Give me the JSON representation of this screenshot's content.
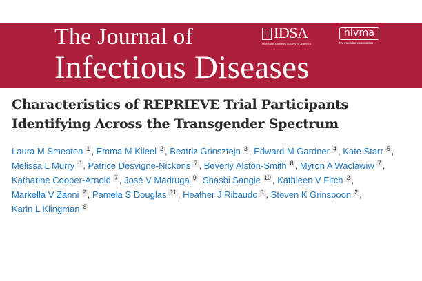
{
  "journal": {
    "title_line1": "The Journal of",
    "title_line2": "Infectious Diseases",
    "brand_color": "#ad1f3b",
    "logos": {
      "idsa": {
        "text": "IDSA",
        "subtitle": "Infectious Diseases Society of America"
      },
      "hivma": {
        "text": "hivma",
        "subtitle": "hiv medicine association"
      }
    }
  },
  "article": {
    "title_line1": "Characteristics of REPRIEVE Trial Participants",
    "title_line2": "Identifying Across the Transgender Spectrum",
    "link_color": "#1f78c1"
  },
  "authors": [
    {
      "name": "Laura M Smeaton",
      "aff": "1"
    },
    {
      "name": "Emma M Kileel",
      "aff": "2"
    },
    {
      "name": "Beatriz Grinsztejn",
      "aff": "3"
    },
    {
      "name": "Edward M Gardner",
      "aff": "4"
    },
    {
      "name": "Kate Starr",
      "aff": "5"
    },
    {
      "name": "Melissa L Murry",
      "aff": "6"
    },
    {
      "name": "Patrice Desvigne-Nickens",
      "aff": "7"
    },
    {
      "name": "Beverly Alston-Smith",
      "aff": "8"
    },
    {
      "name": "Myron A Waclawiw",
      "aff": "7"
    },
    {
      "name": "Katharine Cooper-Arnold",
      "aff": "7"
    },
    {
      "name": "José V Madruga",
      "aff": "9"
    },
    {
      "name": "Shashi Sangle",
      "aff": "10"
    },
    {
      "name": "Kathleen V Fitch",
      "aff": "2"
    },
    {
      "name": "Markella V Zanni",
      "aff": "2"
    },
    {
      "name": "Pamela S Douglas",
      "aff": "11"
    },
    {
      "name": "Heather J Ribaudo",
      "aff": "1"
    },
    {
      "name": "Steven K Grinspoon",
      "aff": "2"
    },
    {
      "name": "Karin L Klingman",
      "aff": "8"
    }
  ],
  "separator": ","
}
